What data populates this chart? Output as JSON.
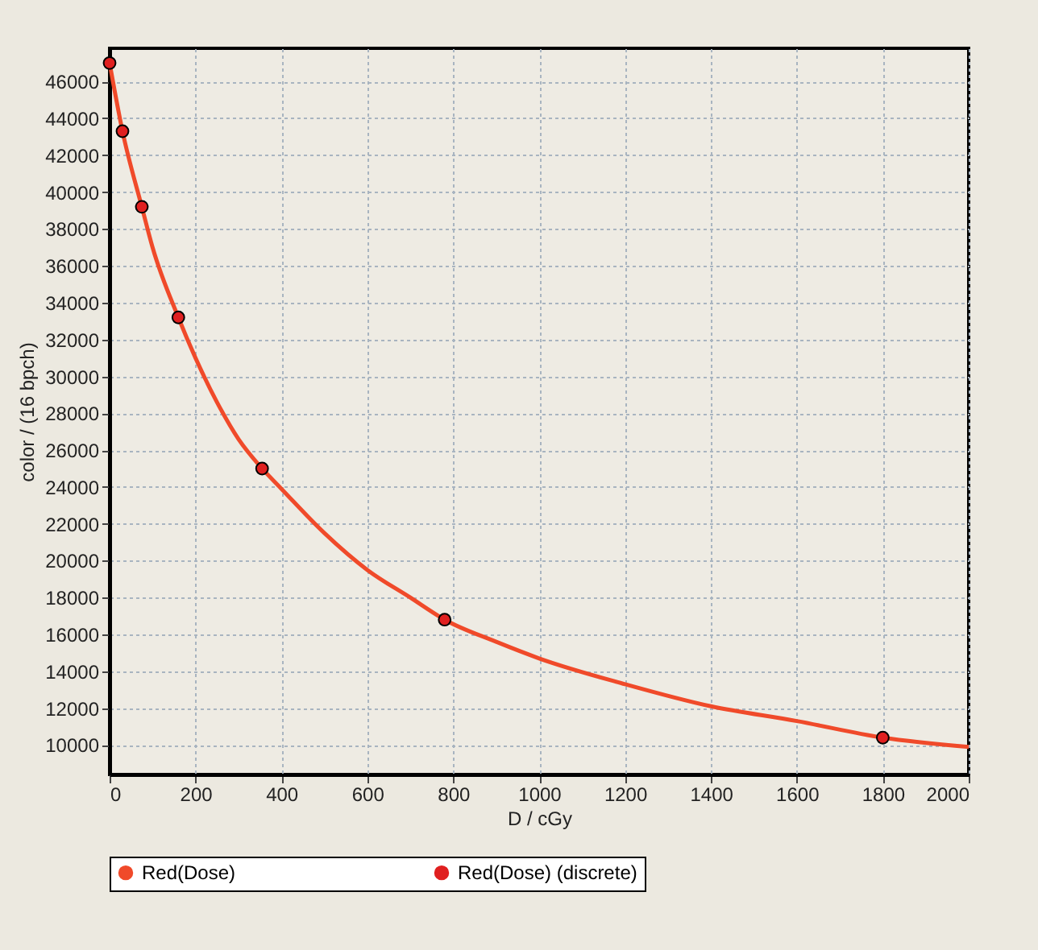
{
  "chart_data": {
    "type": "line",
    "xlabel": "D / cGy",
    "ylabel": "color / (16 bpch)",
    "xlim": [
      0,
      2000
    ],
    "ylim": [
      8400,
      47800
    ],
    "xticks": [
      0,
      200,
      400,
      600,
      800,
      1000,
      1200,
      1400,
      1600,
      1800,
      2000
    ],
    "yticks": [
      10000,
      12000,
      14000,
      16000,
      18000,
      20000,
      22000,
      24000,
      26000,
      28000,
      30000,
      32000,
      34000,
      36000,
      38000,
      40000,
      42000,
      44000,
      46000
    ],
    "grid": true,
    "legend": "bottom",
    "series": [
      {
        "name": "Red(Dose)",
        "type": "line",
        "color": "#f04a2a",
        "x": [
          0,
          30,
          75,
          100,
          160,
          200,
          250,
          300,
          355,
          400,
          500,
          600,
          700,
          780,
          900,
          1000,
          1200,
          1400,
          1600,
          1800,
          2000
        ],
        "values": [
          47000,
          43300,
          39200,
          37000,
          33200,
          31000,
          28600,
          26600,
          25000,
          23900,
          21500,
          19500,
          18000,
          16800,
          15600,
          14700,
          13300,
          12100,
          11300,
          10400,
          9900
        ]
      },
      {
        "name": "Red(Dose) (discrete)",
        "type": "scatter",
        "color": "#e02020",
        "x": [
          0,
          30,
          75,
          160,
          355,
          780,
          1800
        ],
        "values": [
          47000,
          43300,
          39200,
          33200,
          25000,
          16800,
          10400
        ]
      }
    ]
  }
}
